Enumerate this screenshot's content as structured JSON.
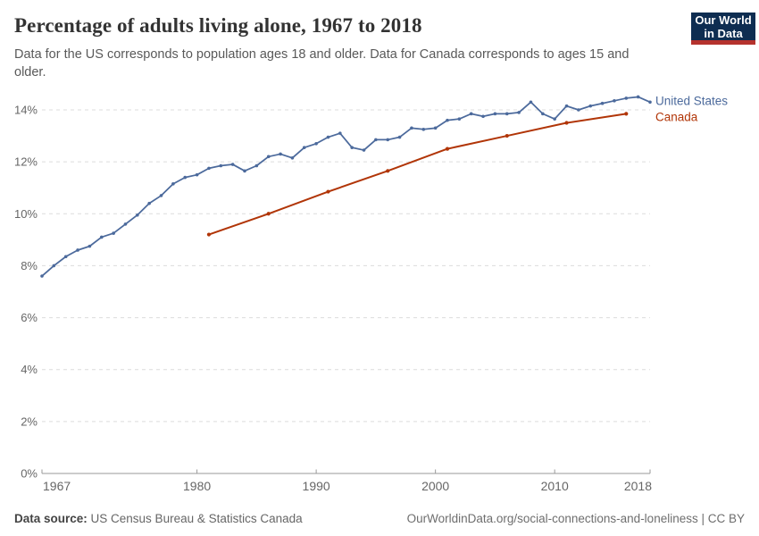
{
  "header": {
    "title": "Percentage of adults living alone, 1967 to 2018",
    "subtitle": "Data for the US corresponds to population ages 18 and older. Data for Canada corresponds to ages 15 and older.",
    "logo": {
      "line1": "Our World",
      "line2": "in Data",
      "bg_color": "#0e2d51",
      "stripe_color": "#b5322e"
    }
  },
  "footer": {
    "source_label": "Data source:",
    "source_text": " US Census Bureau & Statistics Canada",
    "credit": "OurWorldinData.org/social-connections-and-loneliness | CC BY"
  },
  "chart_data": {
    "type": "line",
    "title": "Percentage of adults living alone, 1967 to 2018",
    "xlabel": "",
    "ylabel": "",
    "xlim": [
      1967,
      2018
    ],
    "ylim": [
      0,
      14
    ],
    "x_ticks": [
      1967,
      1980,
      1990,
      2000,
      2010,
      2018
    ],
    "y_ticks": [
      0,
      2,
      4,
      6,
      8,
      10,
      12,
      14
    ],
    "y_tick_suffix": "%",
    "grid": "horizontal-dashed",
    "legend_position": "right-end-labels",
    "colors": {
      "grid": "#dcdcdc",
      "axis": "#9a9a9a",
      "tick_text": "#666666"
    },
    "series": [
      {
        "name": "United States",
        "color": "#4C6A9C",
        "x": [
          1967,
          1968,
          1969,
          1970,
          1971,
          1972,
          1973,
          1974,
          1975,
          1976,
          1977,
          1978,
          1979,
          1980,
          1981,
          1982,
          1983,
          1984,
          1985,
          1986,
          1987,
          1988,
          1989,
          1990,
          1991,
          1992,
          1993,
          1994,
          1995,
          1996,
          1997,
          1998,
          1999,
          2000,
          2001,
          2002,
          2003,
          2004,
          2005,
          2006,
          2007,
          2008,
          2009,
          2010,
          2011,
          2012,
          2013,
          2014,
          2015,
          2016,
          2017,
          2018
        ],
        "y": [
          7.6,
          8.0,
          8.35,
          8.6,
          8.75,
          9.1,
          9.25,
          9.6,
          9.95,
          10.4,
          10.7,
          11.15,
          11.4,
          11.5,
          11.75,
          11.85,
          11.9,
          11.65,
          11.85,
          12.2,
          12.3,
          12.15,
          12.55,
          12.7,
          12.95,
          13.1,
          12.55,
          12.45,
          12.85,
          12.85,
          12.95,
          13.3,
          13.25,
          13.3,
          13.6,
          13.65,
          13.85,
          13.75,
          13.85,
          13.85,
          13.9,
          14.3,
          13.85,
          13.65,
          14.15,
          14.0,
          14.15,
          14.25,
          14.35,
          14.45,
          14.5,
          14.3
        ]
      },
      {
        "name": "Canada",
        "color": "#B13507",
        "x": [
          1981,
          1986,
          1991,
          1996,
          2001,
          2006,
          2011,
          2016
        ],
        "y": [
          9.2,
          10.0,
          10.85,
          11.65,
          12.5,
          13.0,
          13.5,
          13.85
        ]
      }
    ]
  }
}
